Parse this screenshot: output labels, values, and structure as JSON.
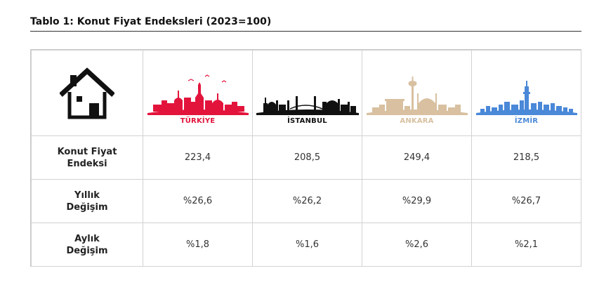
{
  "title": "Tablo 1: Konut Fiyat Endeksleri (2023=100)",
  "columns": [
    {
      "key": "turkiye",
      "label": "TÜRKİYE",
      "color": "#e3143c",
      "icon": "turkiye-skyline-icon"
    },
    {
      "key": "istanbul",
      "label": "İSTANBUL",
      "color": "#111111",
      "icon": "istanbul-skyline-icon"
    },
    {
      "key": "ankara",
      "label": "ANKARA",
      "color": "#d8c0a0",
      "icon": "ankara-skyline-icon"
    },
    {
      "key": "izmir",
      "label": "İZMİR",
      "color": "#4a88d8",
      "icon": "izmir-skyline-icon"
    }
  ],
  "header_icon": "house-icon",
  "rows": [
    {
      "label_line1": "Konut Fiyat",
      "label_line2": "Endeksi",
      "values": [
        "223,4",
        "208,5",
        "249,4",
        "218,5"
      ]
    },
    {
      "label_line1": "Yıllık",
      "label_line2": "Değişim",
      "values": [
        "%26,6",
        "%26,2",
        "%29,9",
        "%26,7"
      ]
    },
    {
      "label_line1": "Aylık",
      "label_line2": "Değişim",
      "values": [
        "%1,8",
        "%1,6",
        "%2,6",
        "%2,1"
      ]
    }
  ]
}
